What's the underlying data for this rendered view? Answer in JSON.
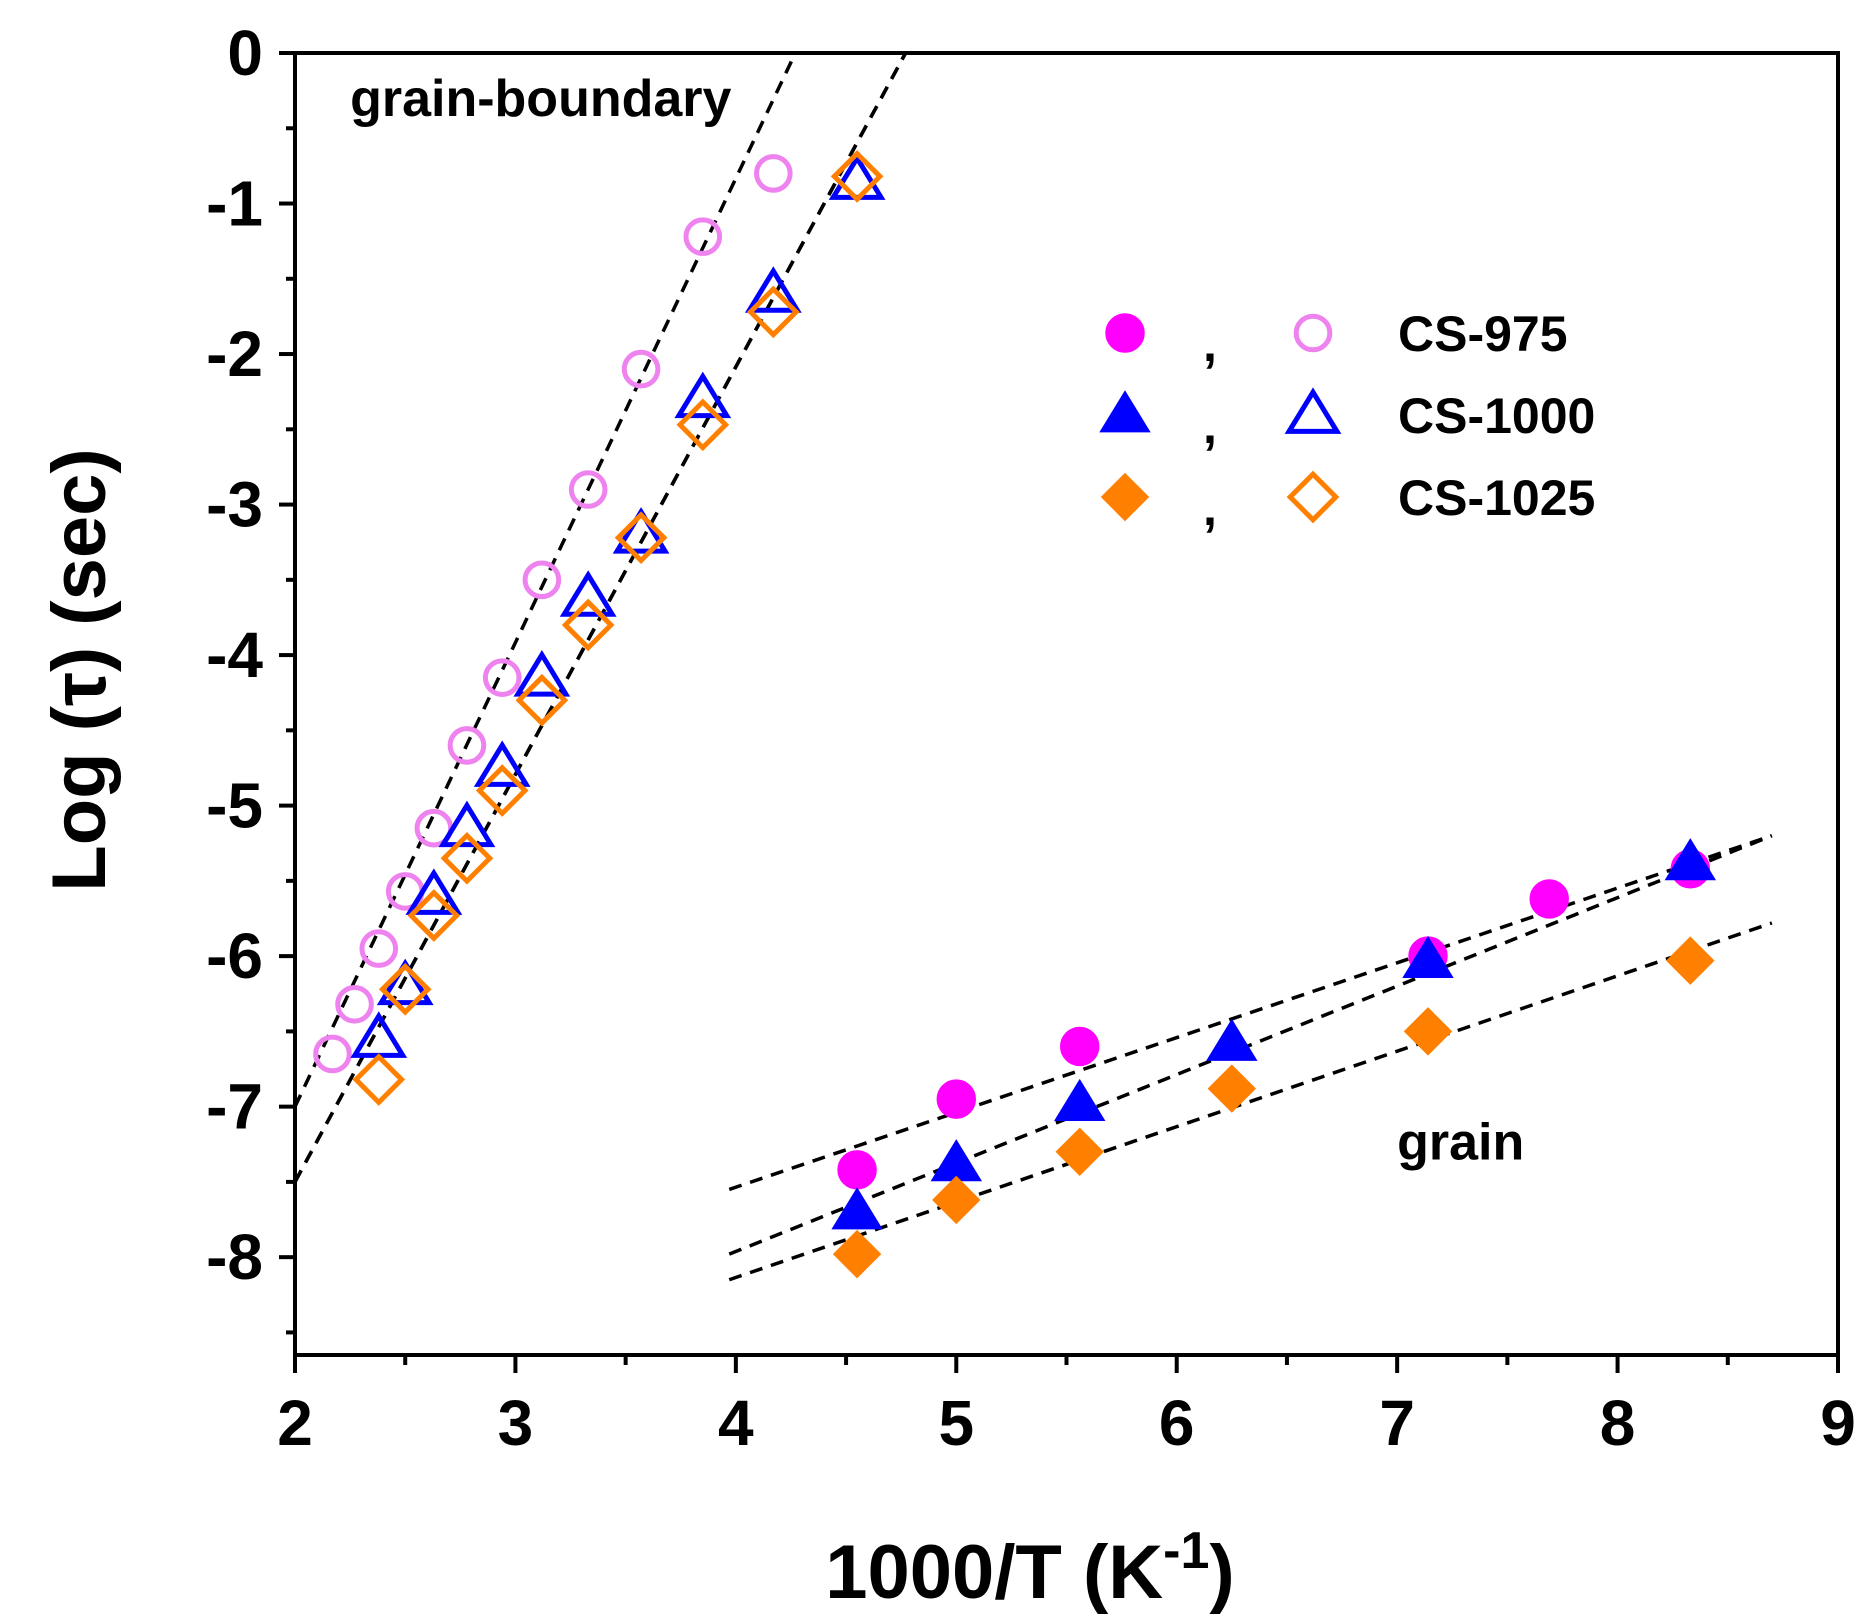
{
  "chart_data": {
    "type": "scatter",
    "title": "",
    "xlabel": {
      "main": "1000/T (K",
      "sup": "-1",
      "end": ")"
    },
    "ylabel": "Log (τ) (sec)",
    "xlim": [
      2,
      9
    ],
    "ylim": [
      -8.65,
      0
    ],
    "xticks": [
      2,
      3,
      4,
      5,
      6,
      7,
      8,
      9
    ],
    "yticks": [
      0,
      -1,
      -2,
      -3,
      -4,
      -5,
      -6,
      -7,
      -8
    ],
    "annotations": [
      {
        "text": "grain-boundary",
        "x": 2.25,
        "y": -0.42
      },
      {
        "text": "grain",
        "x": 7.0,
        "y": -7.35
      }
    ],
    "legend": {
      "position": "top-right",
      "separator": ",",
      "entries": [
        {
          "label": "CS-975",
          "marker": "circle",
          "color": "#ff00ff",
          "hollow_color": "#ee82ee"
        },
        {
          "label": "CS-1000",
          "marker": "triangle",
          "color": "#0000ff",
          "hollow_color": "#0000ff"
        },
        {
          "label": "CS-1025",
          "marker": "diamond",
          "color": "#ff8000",
          "hollow_color": "#ff8000"
        }
      ]
    },
    "series": [
      {
        "name": "CS-975 grain-boundary",
        "marker": "circle",
        "fill": "none",
        "color": "#ee82ee",
        "x": [
          2.17,
          2.27,
          2.38,
          2.5,
          2.63,
          2.78,
          2.94,
          3.12,
          3.33,
          3.57,
          3.85,
          4.17
        ],
        "y": [
          -6.65,
          -6.32,
          -5.95,
          -5.57,
          -5.15,
          -4.6,
          -4.15,
          -3.5,
          -2.9,
          -2.1,
          -1.22,
          -0.8
        ]
      },
      {
        "name": "CS-1000 grain-boundary",
        "marker": "triangle",
        "fill": "none",
        "color": "#0000ff",
        "x": [
          2.38,
          2.5,
          2.63,
          2.78,
          2.94,
          3.12,
          3.33,
          3.57,
          3.85,
          4.17,
          4.55
        ],
        "y": [
          -6.55,
          -6.2,
          -5.6,
          -5.15,
          -4.75,
          -4.15,
          -3.62,
          -3.2,
          -2.3,
          -1.6,
          -0.85
        ]
      },
      {
        "name": "CS-1025 grain-boundary",
        "marker": "diamond",
        "fill": "none",
        "color": "#ff8000",
        "x": [
          2.38,
          2.5,
          2.63,
          2.78,
          2.94,
          3.12,
          3.33,
          3.57,
          3.85,
          4.17,
          4.55
        ],
        "y": [
          -6.82,
          -6.22,
          -5.73,
          -5.35,
          -4.9,
          -4.3,
          -3.8,
          -3.22,
          -2.47,
          -1.72,
          -0.82
        ]
      },
      {
        "name": "CS-975 grain",
        "marker": "circle",
        "fill": "solid",
        "color": "#ff00ff",
        "x": [
          4.55,
          5.0,
          5.56,
          7.14,
          7.69,
          8.33
        ],
        "y": [
          -7.42,
          -6.95,
          -6.6,
          -6.0,
          -5.62,
          -5.42
        ]
      },
      {
        "name": "CS-1000 grain",
        "marker": "triangle",
        "fill": "solid",
        "color": "#0000ff",
        "x": [
          4.55,
          5.0,
          5.56,
          6.25,
          7.14,
          8.33
        ],
        "y": [
          -7.7,
          -7.38,
          -6.98,
          -6.58,
          -6.03,
          -5.38
        ]
      },
      {
        "name": "CS-1025 grain",
        "marker": "diamond",
        "fill": "solid",
        "color": "#ff8000",
        "x": [
          4.55,
          5.0,
          5.56,
          6.25,
          7.14,
          8.33
        ],
        "y": [
          -7.98,
          -7.62,
          -7.3,
          -6.88,
          -6.5,
          -6.03
        ]
      }
    ],
    "fit_lines": [
      {
        "name": "fit CS-975 grain-boundary",
        "x": [
          2.0,
          4.27
        ],
        "y": [
          -7.0,
          0.0
        ]
      },
      {
        "name": "fit CS-1000 grain-boundary",
        "x": [
          2.0,
          4.77
        ],
        "y": [
          -7.5,
          0.0
        ]
      },
      {
        "name": "fit CS-1025 grain-boundary",
        "x": [
          2.0,
          4.77
        ],
        "y": [
          -7.5,
          0.0
        ]
      },
      {
        "name": "fit CS-975 grain",
        "x": [
          3.97,
          8.7
        ],
        "y": [
          -7.55,
          -5.2
        ]
      },
      {
        "name": "fit CS-1000 grain",
        "x": [
          3.97,
          8.7
        ],
        "y": [
          -7.98,
          -5.2
        ]
      },
      {
        "name": "fit CS-1025 grain",
        "x": [
          3.97,
          8.7
        ],
        "y": [
          -8.15,
          -5.78
        ]
      }
    ]
  }
}
